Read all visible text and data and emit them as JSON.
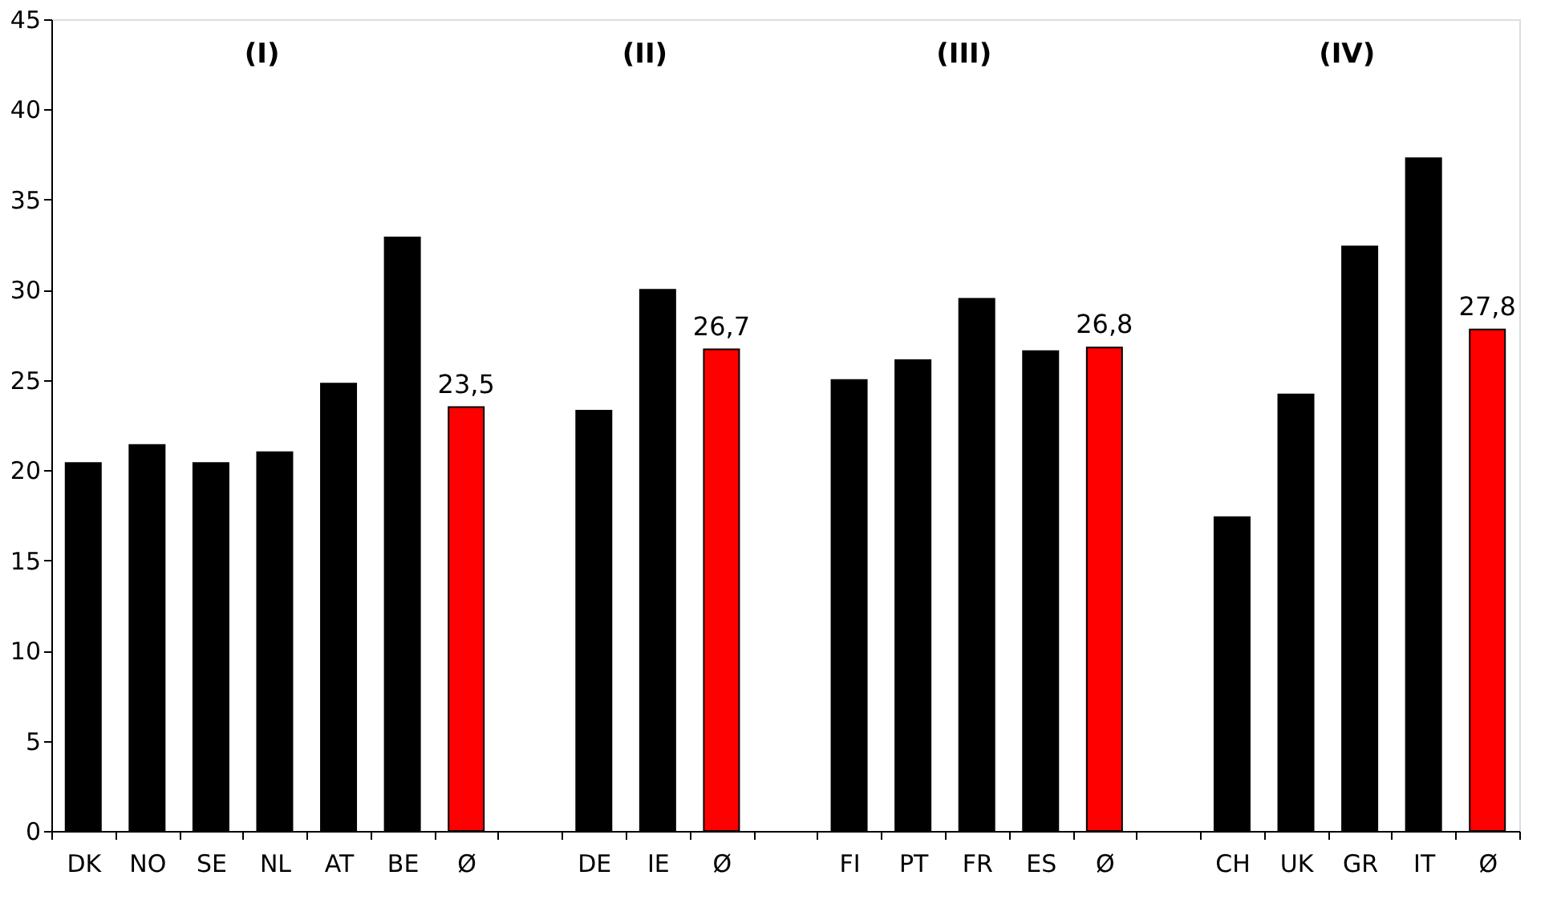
{
  "chart_data": {
    "type": "bar",
    "categories": [
      "DK",
      "NO",
      "SE",
      "NL",
      "AT",
      "BE",
      "Ø",
      null,
      "DE",
      "IE",
      "Ø",
      null,
      "FI",
      "PT",
      "FR",
      "ES",
      "Ø",
      null,
      "CH",
      "UK",
      "GR",
      "IT",
      "Ø"
    ],
    "values": [
      20.4,
      21.4,
      20.4,
      21.0,
      24.8,
      32.9,
      23.5,
      null,
      23.3,
      30.0,
      26.7,
      null,
      25.0,
      26.1,
      29.5,
      26.6,
      26.8,
      null,
      17.4,
      24.2,
      32.4,
      37.3,
      27.8
    ],
    "colors": [
      "#000000",
      "#000000",
      "#000000",
      "#000000",
      "#000000",
      "#000000",
      "#ff0000",
      null,
      "#000000",
      "#000000",
      "#ff0000",
      null,
      "#000000",
      "#000000",
      "#000000",
      "#000000",
      "#ff0000",
      null,
      "#000000",
      "#000000",
      "#000000",
      "#000000",
      "#ff0000"
    ],
    "value_labels": [
      null,
      null,
      null,
      null,
      null,
      null,
      "23,5",
      null,
      null,
      null,
      "26,7",
      null,
      null,
      null,
      null,
      null,
      "26,8",
      null,
      null,
      null,
      null,
      null,
      "27,8"
    ],
    "annotations": [
      "(I)",
      "(II)",
      "(III)",
      "(IV)"
    ],
    "ylim": [
      0,
      45
    ],
    "yticks": [
      0,
      5,
      10,
      15,
      20,
      25,
      30,
      35,
      40,
      45
    ],
    "grid": false
  }
}
